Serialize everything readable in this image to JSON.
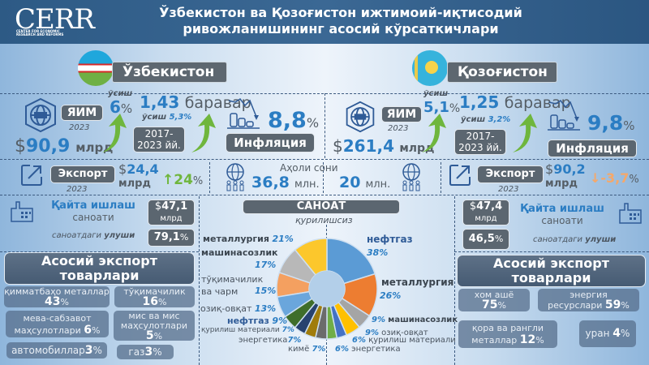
{
  "header": {
    "logo": "CERR",
    "logo_sub": "CENTER FOR ECONOMIC RESEARCH AND REFORMS",
    "title_line1": "Ўзбекистон ва Қозоғистон ижтимоий-иқтисодий",
    "title_line2": "ривожланишининг асосий кўрсаткичлари",
    "bg_color": "#3b6894"
  },
  "uzbekistan": {
    "name": "Ўзбекистон",
    "flag_icon": "uzbekistan-flag-icon",
    "gdp": {
      "label": "ЯИМ",
      "year": "2023",
      "currency": "$",
      "value": "90,9",
      "unit": "млрд",
      "growth_label": "ўсиш",
      "growth_value": "6",
      "growth_unit": "%"
    },
    "growth_period": {
      "multiplier": "1,43",
      "multiplier_word": "баравар",
      "avg_growth_label": "ўсиш",
      "avg_growth_value": "5,3%",
      "period_line1": "2017-",
      "period_line2": "2023 йй."
    },
    "inflation": {
      "value": "8,8",
      "unit": "%",
      "label": "Инфляция"
    },
    "export": {
      "label": "Экспорт",
      "year": "2023",
      "currency": "$",
      "value": "24,4",
      "unit": "млрд",
      "change": "24",
      "change_unit": "%",
      "change_color": "#6fb63d"
    },
    "population": {
      "value": "36,8",
      "unit": "млн."
    },
    "manufacturing": {
      "title": "Қайта ишлаш",
      "subtitle": "саноати",
      "currency": "$",
      "value": "47,1",
      "unit": "млрд",
      "share_label_1": "саноатдаги",
      "share_label_2": "улуши",
      "share_value": "79,1",
      "share_unit": "%"
    },
    "main_exports": {
      "title_line1": "Асосий экспорт",
      "title_line2": "товарлари",
      "items": [
        {
          "name": "қимматбаҳо металлар",
          "value": "43",
          "unit": "%"
        },
        {
          "name": "тўқимачилик",
          "value": "16",
          "unit": "%"
        },
        {
          "name": "мева-сабзавот маҳсулотлари",
          "value": "6",
          "unit": "%"
        },
        {
          "name": "мис ва мис маҳсулотлари",
          "value": "5",
          "unit": "%"
        },
        {
          "name": "автомобиллар",
          "value": "3",
          "unit": "%"
        },
        {
          "name": "газ",
          "value": "3",
          "unit": "%"
        }
      ]
    }
  },
  "kazakhstan": {
    "name": "Қозоғистон",
    "flag_icon": "kazakhstan-flag-icon",
    "gdp": {
      "label": "ЯИМ",
      "year": "2023",
      "currency": "$",
      "value": "261,4",
      "unit": "млрд",
      "growth_label": "ўсиш",
      "growth_value": "5,1",
      "growth_unit": "%"
    },
    "growth_period": {
      "multiplier": "1,25",
      "multiplier_word": "баравар",
      "avg_growth_label": "ўсиш",
      "avg_growth_value": "3,2%",
      "period_line1": "2017-",
      "period_line2": "2023 йй."
    },
    "inflation": {
      "value": "9,8",
      "unit": "%",
      "label": "Инфляция"
    },
    "export": {
      "label": "Экспорт",
      "year": "2023",
      "currency": "$",
      "value": "90,2",
      "unit": "млрд",
      "change": "-3,7",
      "change_unit": "%",
      "change_color": "#f5a86a"
    },
    "population": {
      "value": "20",
      "unit": "млн."
    },
    "manufacturing": {
      "title": "Қайта ишлаш",
      "subtitle": "саноати",
      "currency": "$",
      "value": "47,4",
      "unit": "млрд",
      "share_label_1": "саноатдаги",
      "share_label_2": "улуши",
      "share_value": "46,5",
      "share_unit": "%"
    },
    "main_exports": {
      "title_line1": "Асосий экспорт",
      "title_line2": "товарлари",
      "items": [
        {
          "name": "хом ашё",
          "value": "75",
          "unit": "%"
        },
        {
          "name": "энергия ресурслари",
          "value": "59",
          "unit": "%"
        },
        {
          "name": "қора ва рангли металлар",
          "value": "12",
          "unit": "%"
        },
        {
          "name": "уран",
          "value": "4",
          "unit": "%"
        }
      ]
    }
  },
  "population_title": "Аҳоли сони",
  "industry": {
    "title": "САНОАТ",
    "subtitle": "қурилишсиз"
  },
  "chart_data": {
    "type": "pie",
    "title": "САНОАТ",
    "subtitle": "қурилишсиз",
    "note": "Split donut: left half Uzbekistan industry structure, right half Kazakhstan industry structure",
    "series": [
      {
        "name": "Ўзбекистон",
        "categories": [
          "металлургия",
          "машинасозлик",
          "тўқимачилик ва чарм",
          "озиқ-овқат",
          "нефтгаз",
          "қурилиш материали",
          "энергетика",
          "кимё"
        ],
        "values": [
          21,
          17,
          15,
          13,
          9,
          7,
          7,
          7
        ],
        "colors": [
          "#fcc72c",
          "#b8b8b8",
          "#f4a060",
          "#6aa6dc",
          "#3f6e2a",
          "#27426f",
          "#a07c0c",
          "#6b6b6b"
        ]
      },
      {
        "name": "Қозоғистон",
        "categories": [
          "нефтгаз",
          "металлургия",
          "машинасозлик",
          "озиқ-овқат",
          "қурилиш материали",
          "энергетика"
        ],
        "values": [
          38,
          26,
          9,
          9,
          6,
          6
        ],
        "colors": [
          "#5b9bd5",
          "#ed7d31",
          "#a5a5a5",
          "#ffc000",
          "#4472c4",
          "#70ad47"
        ]
      }
    ],
    "labels_left": [
      {
        "name": "металлургия",
        "value": "21%"
      },
      {
        "name": "машинасозлик",
        "value": "17%"
      },
      {
        "name": "тўқимачилик ва чарм",
        "value": "15%"
      },
      {
        "name": "озиқ-овқат",
        "value": "13%"
      },
      {
        "name": "нефтгаз",
        "value": "9%"
      },
      {
        "name": "қурилиш материали",
        "value": "7%"
      },
      {
        "name": "энергетика",
        "value": "7%"
      },
      {
        "name": "кимё",
        "value": "7%"
      }
    ],
    "labels_right": [
      {
        "name": "нефтгаз",
        "value": "38%"
      },
      {
        "name": "металлургия",
        "value": "26%"
      },
      {
        "name": "машинасозлик",
        "value": "9%"
      },
      {
        "name": "озиқ-овқат",
        "value": "9%"
      },
      {
        "name": "қурилиш материали",
        "value": "6%"
      },
      {
        "name": "энергетика",
        "value": "6%"
      }
    ]
  }
}
